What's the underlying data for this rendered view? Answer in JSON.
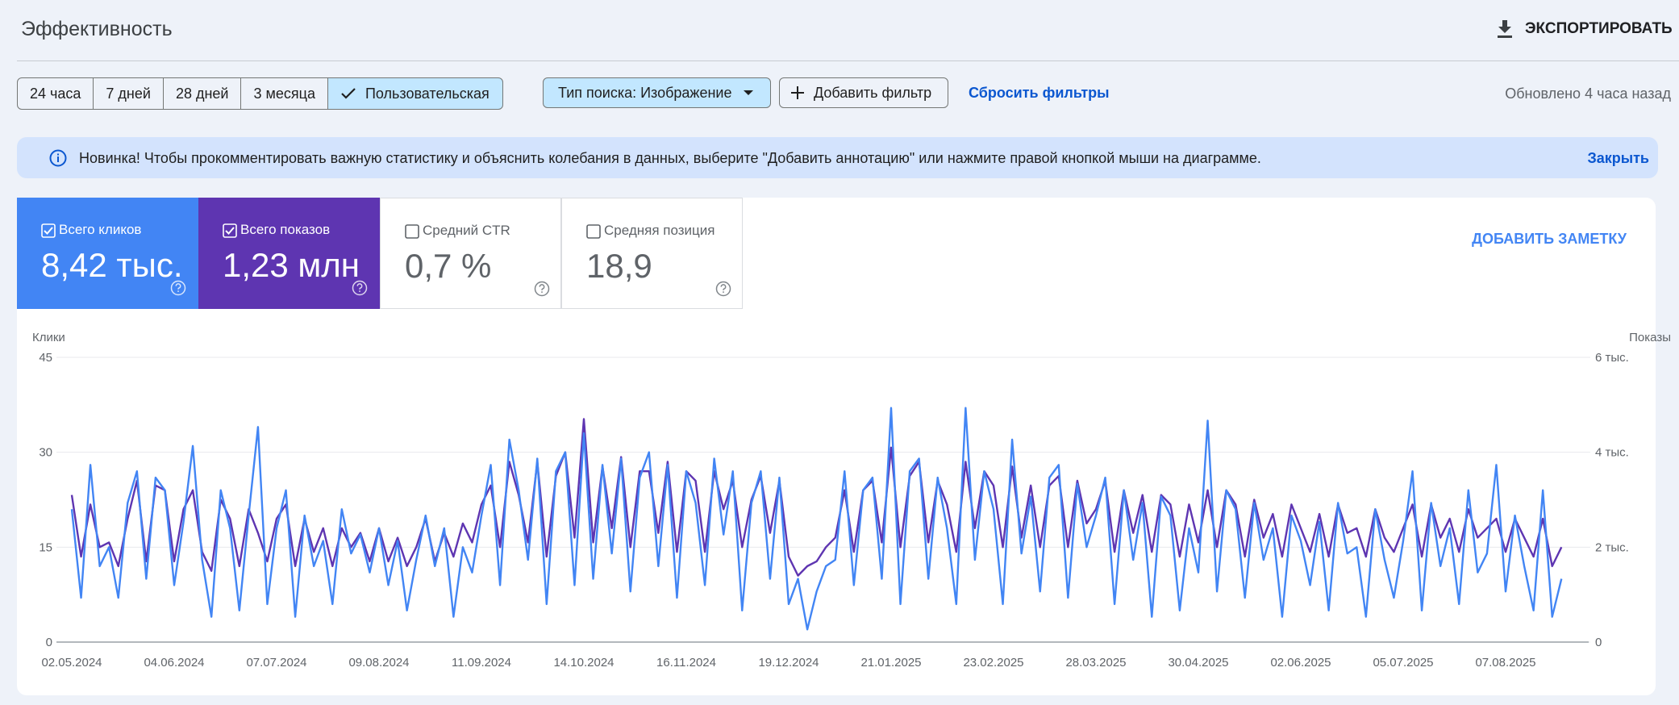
{
  "header": {
    "title": "Эффективность",
    "export": "ЭКСПОРТИРОВАТЬ"
  },
  "filters": {
    "date_ranges": [
      {
        "label": "24 часа",
        "selected": false
      },
      {
        "label": "7 дней",
        "selected": false
      },
      {
        "label": "28 дней",
        "selected": false
      },
      {
        "label": "3 месяца",
        "selected": false
      },
      {
        "label": "Пользовательская",
        "selected": true
      }
    ],
    "search_type": "Тип поиска: Изображение",
    "add_filter": "Добавить фильтр",
    "reset": "Сбросить фильтры",
    "updated": "Обновлено 4 часа назад"
  },
  "banner": {
    "text": "Новинка! Чтобы прокомментировать важную статистику и объяснить колебания в данных, выберите \"Добавить аннотацию\" или нажмите правой кнопкой мыши на диаграмме.",
    "close": "Закрыть"
  },
  "metrics": [
    {
      "label": "Всего кликов",
      "value": "8,42 тыс.",
      "checked": true,
      "color": "#4285f4"
    },
    {
      "label": "Всего показов",
      "value": "1,23 млн",
      "checked": true,
      "color": "#5e35b1"
    },
    {
      "label": "Средний CTR",
      "value": "0,7 %",
      "checked": false
    },
    {
      "label": "Средняя позиция",
      "value": "18,9",
      "checked": false
    }
  ],
  "add_note": "ДОБАВИТЬ ЗАМЕТКУ",
  "chart_data": {
    "type": "line",
    "categories": [
      "02.05.2024",
      null,
      null,
      null,
      null,
      null,
      null,
      null,
      null,
      null,
      null,
      "04.06.2024",
      null,
      null,
      null,
      null,
      null,
      null,
      null,
      null,
      null,
      null,
      "07.07.2024",
      null,
      null,
      null,
      null,
      null,
      null,
      null,
      null,
      null,
      null,
      "09.08.2024",
      null,
      null,
      null,
      null,
      null,
      null,
      null,
      null,
      null,
      null,
      "11.09.2024",
      null,
      null,
      null,
      null,
      null,
      null,
      null,
      null,
      null,
      null,
      "14.10.2024",
      null,
      null,
      null,
      null,
      null,
      null,
      null,
      null,
      null,
      null,
      "16.11.2024",
      null,
      null,
      null,
      null,
      null,
      null,
      null,
      null,
      null,
      null,
      "19.12.2024",
      null,
      null,
      null,
      null,
      null,
      null,
      null,
      null,
      null,
      null,
      "21.01.2025",
      null,
      null,
      null,
      null,
      null,
      null,
      null,
      null,
      null,
      null,
      "23.02.2025",
      null,
      null,
      null,
      null,
      null,
      null,
      null,
      null,
      null,
      null,
      "28.03.2025",
      null,
      null,
      null,
      null,
      null,
      null,
      null,
      null,
      null,
      null,
      "30.04.2025",
      null,
      null,
      null,
      null,
      null,
      null,
      null,
      null,
      null,
      null,
      "02.06.2025",
      null,
      null,
      null,
      null,
      null,
      null,
      null,
      null,
      null,
      null,
      "05.07.2025",
      null,
      null,
      null,
      null,
      null,
      null,
      null,
      null,
      null,
      null,
      "07.08.2025",
      null,
      null,
      null,
      null,
      null,
      null
    ],
    "series": [
      {
        "name": "Показы",
        "color": "#5e35b1",
        "axis": "y2",
        "values": [
          3100,
          1800,
          2900,
          2000,
          2100,
          1600,
          2600,
          3400,
          1700,
          3300,
          3200,
          1700,
          2800,
          3200,
          1900,
          1500,
          3000,
          2600,
          1600,
          2800,
          2300,
          1700,
          2600,
          2900,
          1600,
          2600,
          1900,
          2400,
          1600,
          2400,
          2000,
          2300,
          1700,
          2400,
          1700,
          2200,
          1600,
          2000,
          2600,
          1700,
          2300,
          1800,
          2500,
          2100,
          2900,
          3300,
          2000,
          3800,
          3100,
          2100,
          3800,
          1800,
          3500,
          4000,
          2200,
          4700,
          2100,
          3700,
          2400,
          3900,
          2000,
          3600,
          3600,
          2300,
          3800,
          1900,
          3600,
          3400,
          1900,
          3600,
          2800,
          3400,
          2000,
          3000,
          3500,
          2300,
          3400,
          1800,
          1400,
          1600,
          1700,
          2000,
          2200,
          3200,
          1900,
          3200,
          3400,
          2100,
          4100,
          2000,
          3500,
          3800,
          2100,
          3400,
          2900,
          1900,
          3800,
          2400,
          3600,
          3300,
          2000,
          3700,
          2200,
          3300,
          2000,
          3300,
          3500,
          2000,
          3400,
          2500,
          2800,
          3400,
          1900,
          3200,
          2300,
          3100,
          1900,
          3100,
          2900,
          1800,
          2900,
          2100,
          3200,
          2000,
          3200,
          2900,
          1800,
          3000,
          2200,
          2700,
          1800,
          2900,
          2400,
          1900,
          2700,
          1800,
          2900,
          2300,
          2400,
          1800,
          2800,
          2200,
          1900,
          2400,
          2900,
          1800,
          2900,
          2200,
          2600,
          1900,
          2800,
          2200,
          2400,
          2600,
          1900,
          2600,
          2200,
          1800,
          2600,
          1600,
          2000
        ]
      },
      {
        "name": "Клики",
        "color": "#4285f4",
        "values": [
          21,
          7,
          28,
          12,
          15,
          7,
          22,
          27,
          10,
          26,
          24,
          9,
          19,
          31,
          13,
          4,
          24,
          18,
          5,
          20,
          34,
          6,
          18,
          24,
          4,
          20,
          12,
          16,
          6,
          21,
          14,
          17,
          11,
          18,
          9,
          16,
          5,
          13,
          20,
          12,
          18,
          4,
          15,
          11,
          20,
          28,
          9,
          32,
          24,
          13,
          29,
          6,
          27,
          30,
          9,
          33,
          10,
          28,
          14,
          29,
          8,
          26,
          30,
          12,
          28,
          7,
          27,
          22,
          9,
          29,
          17,
          27,
          5,
          22,
          27,
          10,
          26,
          6,
          10,
          2,
          8,
          12,
          13,
          27,
          9,
          24,
          26,
          10,
          37,
          6,
          27,
          29,
          10,
          26,
          18,
          6,
          37,
          13,
          27,
          21,
          6,
          32,
          14,
          23,
          8,
          26,
          28,
          7,
          25,
          15,
          20,
          26,
          6,
          24,
          13,
          22,
          4,
          23,
          20,
          5,
          18,
          11,
          35,
          8,
          24,
          21,
          7,
          22,
          13,
          18,
          4,
          20,
          16,
          9,
          19,
          5,
          22,
          14,
          15,
          4,
          21,
          13,
          7,
          16,
          27,
          5,
          22,
          12,
          18,
          6,
          24,
          11,
          14,
          28,
          8,
          20,
          12,
          5,
          24,
          4,
          10
        ]
      }
    ],
    "ylim": [
      0,
      45
    ],
    "yticks": [
      0,
      15,
      30,
      45
    ],
    "y2lim": [
      0,
      6000
    ],
    "y2ticks": [
      0,
      {
        "value": 2000,
        "label": "2 тыс."
      },
      {
        "value": 4000,
        "label": "4 тыс."
      },
      {
        "value": 6000,
        "label": "6 тыс."
      }
    ],
    "grid": true
  }
}
